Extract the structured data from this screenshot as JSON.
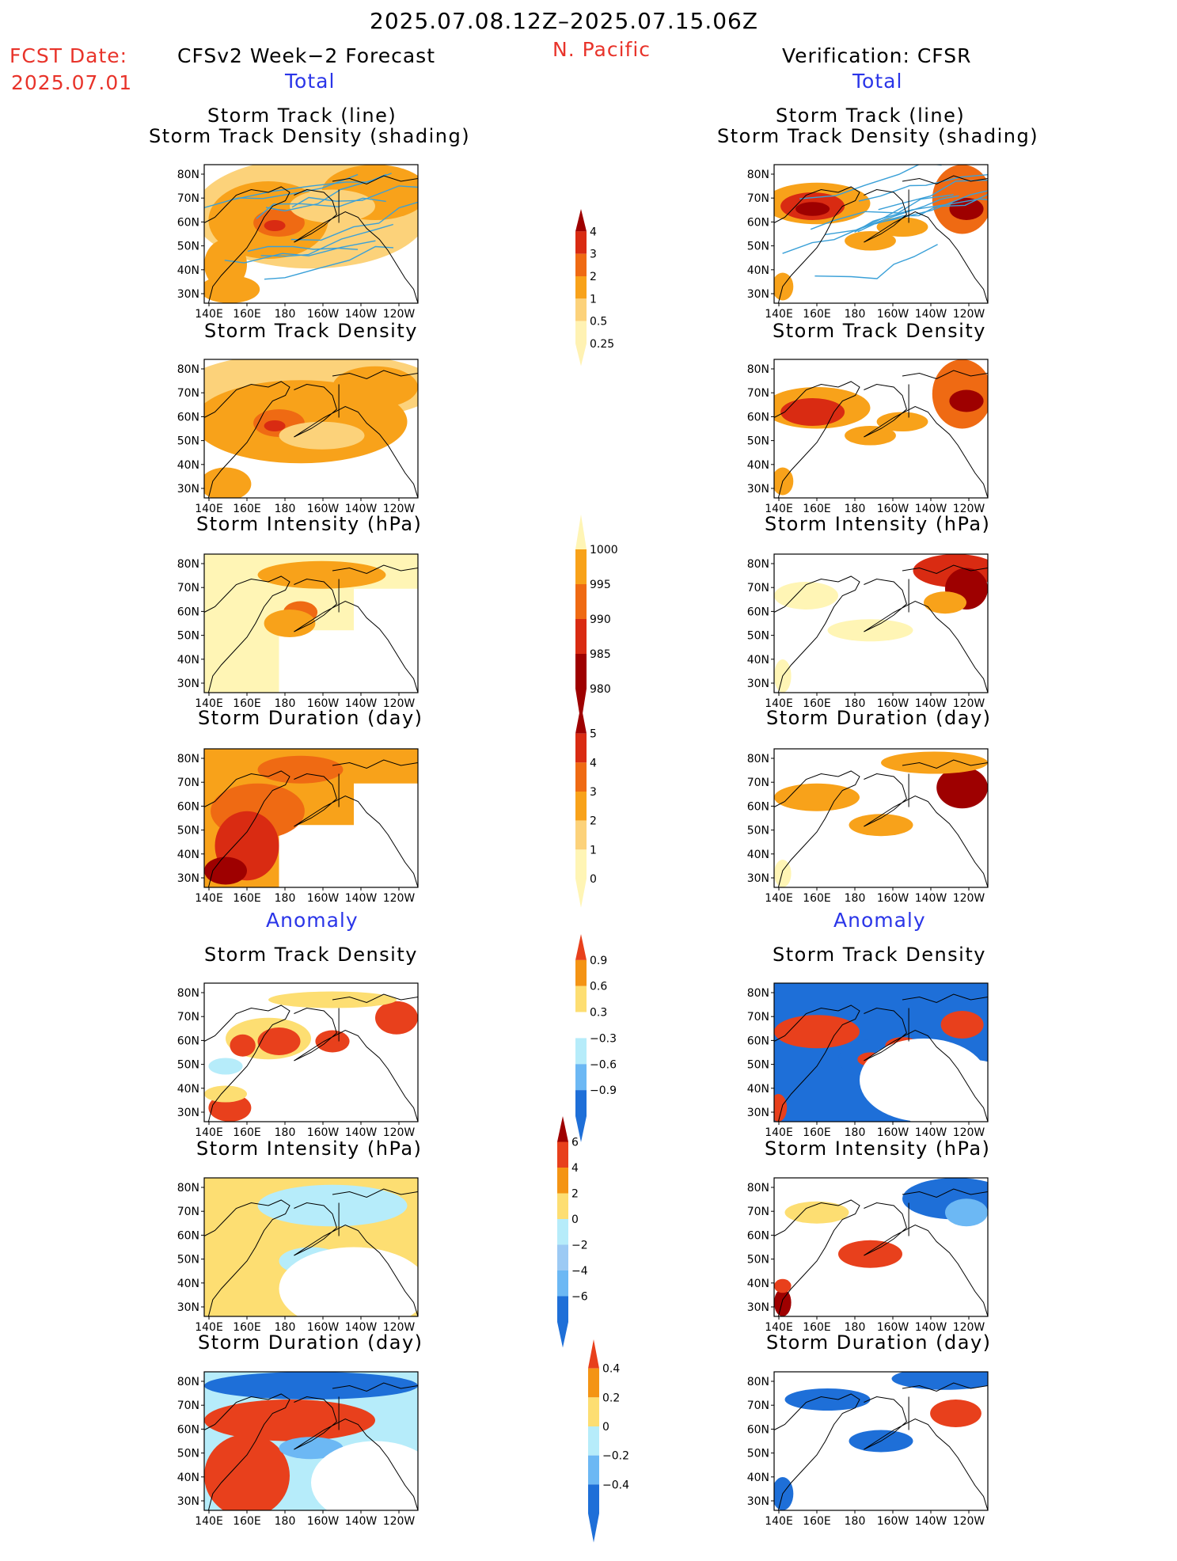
{
  "header": {
    "period": "2025.07.08.12Z–2025.07.15.06Z",
    "fcst_label": "FCST Date:",
    "fcst_date": "2025.07.01",
    "region": "N. Pacific",
    "left_title": "CFSv2 Week−2 Forecast",
    "right_title": "Verification: CFSR",
    "total_label": "Total",
    "anomaly_label": "Anomaly"
  },
  "panel_titles": {
    "track_line": "Storm Track (line)",
    "track_shading": "Storm Track Density (shading)",
    "density": "Storm Track Density",
    "intensity": "Storm Intensity (hPa)",
    "duration": "Storm Duration (day)"
  },
  "axes": {
    "lat_labels": [
      "80N",
      "70N",
      "60N",
      "50N",
      "40N",
      "30N"
    ],
    "lon_labels": [
      "140E",
      "160E",
      "180",
      "160W",
      "140W",
      "120W"
    ]
  },
  "colorbars": [
    {
      "name": "density-total",
      "labels": [
        "4",
        "3",
        "2",
        "1",
        "0.5",
        "0.25"
      ],
      "colors": [
        "#9e0000",
        "#d92b12",
        "#ef6a13",
        "#f8a21a",
        "#fcd27a",
        "#fff2b3"
      ]
    },
    {
      "name": "intensity-total",
      "labels": [
        "1000",
        "995",
        "990",
        "985",
        "980"
      ],
      "colors": [
        "#fff5b5",
        "#f8a21a",
        "#ef6a13",
        "#d92b12",
        "#9e0000"
      ]
    },
    {
      "name": "duration-total",
      "labels": [
        "5",
        "4",
        "3",
        "2",
        "1",
        "0"
      ],
      "colors": [
        "#9e0000",
        "#d92b12",
        "#ef6a13",
        "#f8a21a",
        "#fcd27a",
        "#fff5b5"
      ]
    },
    {
      "name": "density-anom",
      "labels": [
        "0.9",
        "0.6",
        "0.3",
        "−0.3",
        "−0.6",
        "−0.9"
      ],
      "colors": [
        "#e8401c",
        "#f49414",
        "#fdde72",
        "#ffffff",
        "#b6ecfa",
        "#6cb8f4",
        "#1e6fd8"
      ]
    },
    {
      "name": "intensity-anom",
      "labels": [
        "6",
        "4",
        "2",
        "0",
        "−2",
        "−4",
        "−6"
      ],
      "colors": [
        "#9e0000",
        "#e8401c",
        "#f49414",
        "#fdde72",
        "#b6ecfa",
        "#9ccaf4",
        "#6cb8f4",
        "#1e6fd8"
      ]
    },
    {
      "name": "duration-anom",
      "labels": [
        "0.4",
        "0.2",
        "0",
        "−0.2",
        "−0.4"
      ],
      "colors": [
        "#e8401c",
        "#f49414",
        "#fdde72",
        "#b6ecfa",
        "#6cb8f4",
        "#1e6fd8"
      ]
    }
  ]
}
